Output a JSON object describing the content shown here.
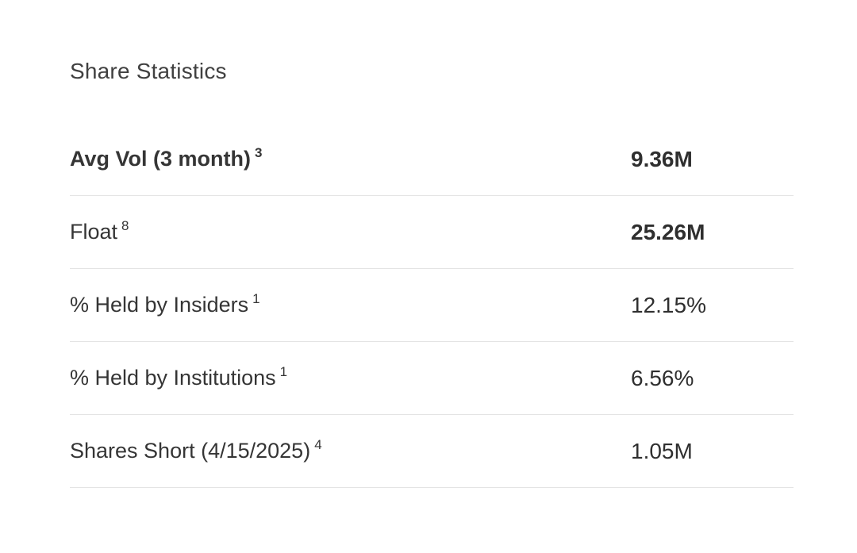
{
  "panel": {
    "title": "Share Statistics"
  },
  "table": {
    "rows": [
      {
        "label": "Avg Vol (3 month)",
        "footnote": "3",
        "value": "9.36M",
        "label_bold": true,
        "value_bold": true
      },
      {
        "label": "Float",
        "footnote": "8",
        "value": "25.26M",
        "label_bold": false,
        "value_bold": true
      },
      {
        "label": "% Held by Insiders",
        "footnote": "1",
        "value": "12.15%",
        "label_bold": false,
        "value_bold": false
      },
      {
        "label": "% Held by Institutions",
        "footnote": "1",
        "value": "6.56%",
        "label_bold": false,
        "value_bold": false
      },
      {
        "label": "Shares Short (4/15/2025)",
        "footnote": "4",
        "value": "1.05M",
        "label_bold": false,
        "value_bold": false
      }
    ]
  },
  "colors": {
    "background": "#ffffff",
    "title_text": "#404040",
    "body_text": "#353535",
    "divider": "#e4e4e4"
  }
}
